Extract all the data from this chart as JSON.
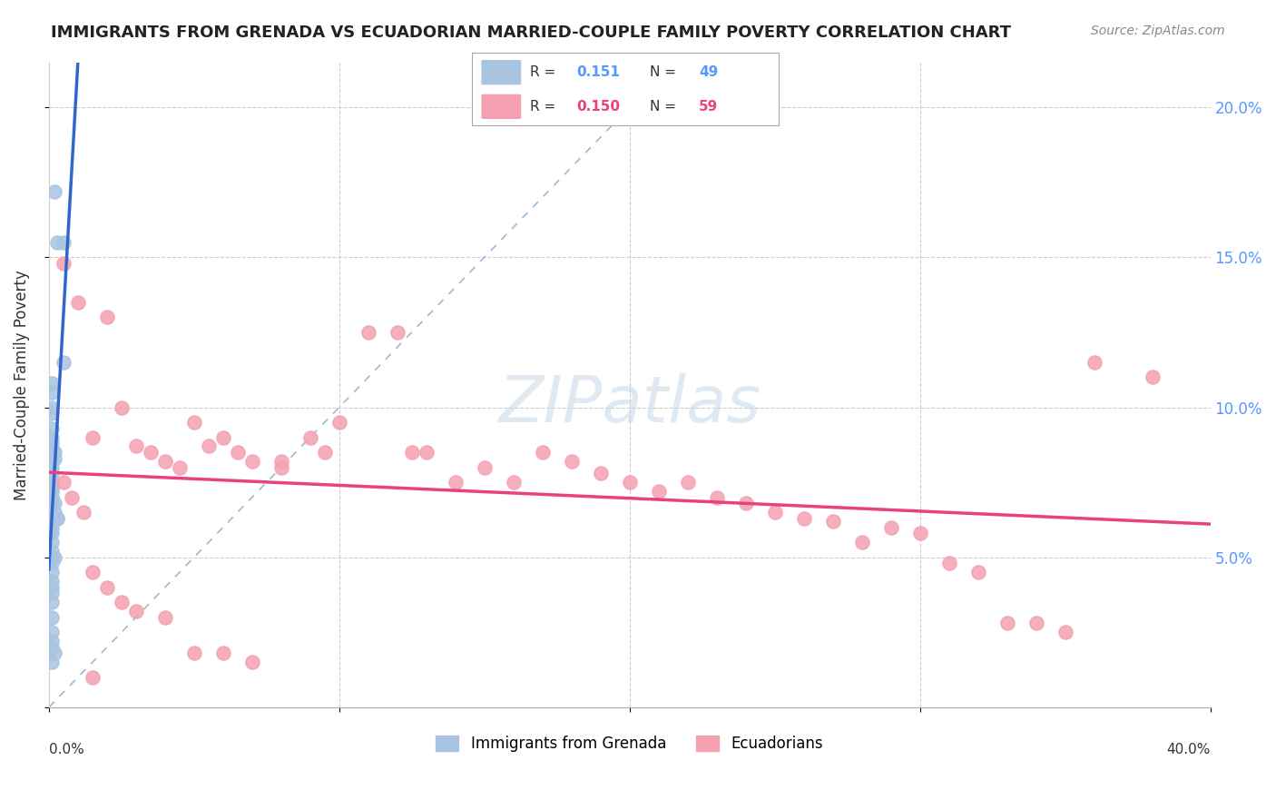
{
  "title": "IMMIGRANTS FROM GRENADA VS ECUADORIAN MARRIED-COUPLE FAMILY POVERTY CORRELATION CHART",
  "source": "Source: ZipAtlas.com",
  "ylabel": "Married-Couple Family Poverty",
  "yticks": [
    0.0,
    0.05,
    0.1,
    0.15,
    0.2
  ],
  "ytick_labels": [
    "",
    "5.0%",
    "10.0%",
    "15.0%",
    "20.0%"
  ],
  "xlim": [
    0.0,
    0.4
  ],
  "ylim": [
    0.0,
    0.215
  ],
  "series1_color": "#a8c4e0",
  "series2_color": "#f4a0b0",
  "trendline1_color": "#3366cc",
  "trendline2_color": "#e84080",
  "dashed_line_color": "#a0b8d0",
  "background": "#ffffff",
  "grenada_x": [
    0.002,
    0.005,
    0.003,
    0.005,
    0.001,
    0.001,
    0.001,
    0.001,
    0.001,
    0.001,
    0.001,
    0.001,
    0.002,
    0.002,
    0.001,
    0.001,
    0.001,
    0.001,
    0.001,
    0.001,
    0.001,
    0.001,
    0.001,
    0.001,
    0.001,
    0.001,
    0.002,
    0.002,
    0.003,
    0.003,
    0.001,
    0.001,
    0.001,
    0.001,
    0.001,
    0.001,
    0.002,
    0.001,
    0.001,
    0.001,
    0.001,
    0.001,
    0.001,
    0.001,
    0.001,
    0.001,
    0.001,
    0.002,
    0.001
  ],
  "grenada_y": [
    0.172,
    0.155,
    0.155,
    0.115,
    0.108,
    0.105,
    0.1,
    0.098,
    0.093,
    0.09,
    0.088,
    0.086,
    0.085,
    0.083,
    0.082,
    0.08,
    0.078,
    0.075,
    0.075,
    0.073,
    0.072,
    0.07,
    0.07,
    0.07,
    0.068,
    0.068,
    0.068,
    0.065,
    0.063,
    0.063,
    0.062,
    0.06,
    0.058,
    0.055,
    0.052,
    0.05,
    0.05,
    0.048,
    0.045,
    0.042,
    0.04,
    0.038,
    0.035,
    0.03,
    0.025,
    0.022,
    0.02,
    0.018,
    0.015
  ],
  "ecuador_x": [
    0.005,
    0.01,
    0.015,
    0.02,
    0.025,
    0.03,
    0.035,
    0.04,
    0.045,
    0.05,
    0.055,
    0.06,
    0.065,
    0.07,
    0.08,
    0.09,
    0.095,
    0.1,
    0.11,
    0.12,
    0.125,
    0.13,
    0.14,
    0.15,
    0.16,
    0.17,
    0.18,
    0.19,
    0.2,
    0.21,
    0.22,
    0.23,
    0.24,
    0.25,
    0.26,
    0.27,
    0.28,
    0.29,
    0.3,
    0.31,
    0.32,
    0.33,
    0.34,
    0.35,
    0.36,
    0.005,
    0.008,
    0.012,
    0.015,
    0.02,
    0.025,
    0.03,
    0.04,
    0.05,
    0.06,
    0.07,
    0.08,
    0.38,
    0.015
  ],
  "ecuador_y": [
    0.148,
    0.135,
    0.09,
    0.13,
    0.1,
    0.087,
    0.085,
    0.082,
    0.08,
    0.095,
    0.087,
    0.09,
    0.085,
    0.082,
    0.08,
    0.09,
    0.085,
    0.095,
    0.125,
    0.125,
    0.085,
    0.085,
    0.075,
    0.08,
    0.075,
    0.085,
    0.082,
    0.078,
    0.075,
    0.072,
    0.075,
    0.07,
    0.068,
    0.065,
    0.063,
    0.062,
    0.055,
    0.06,
    0.058,
    0.048,
    0.045,
    0.028,
    0.028,
    0.025,
    0.115,
    0.075,
    0.07,
    0.065,
    0.045,
    0.04,
    0.035,
    0.032,
    0.03,
    0.018,
    0.018,
    0.015,
    0.082,
    0.11,
    0.01
  ]
}
